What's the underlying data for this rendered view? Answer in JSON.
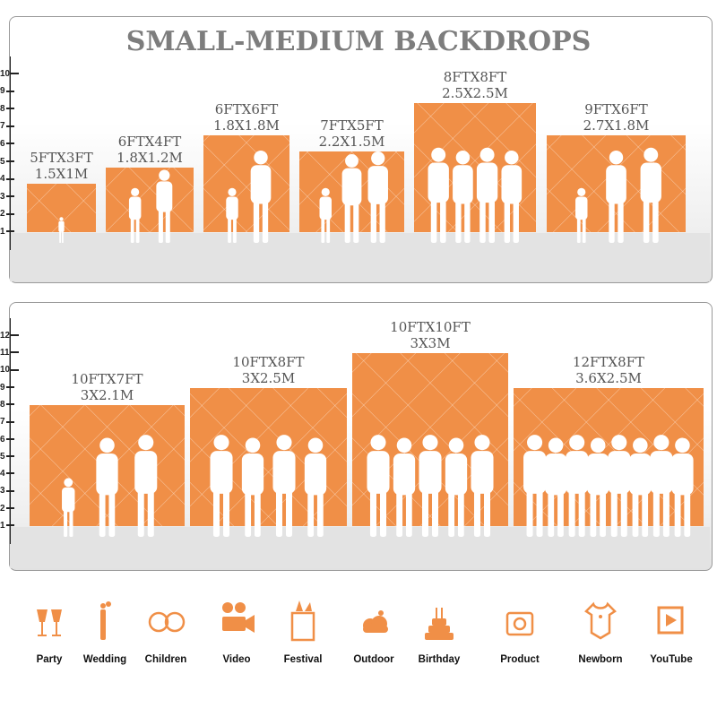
{
  "title": "SMALL-MEDIUM BACKDROPS",
  "top_ruler": [
    "10",
    "9",
    "8",
    "7",
    "6",
    "5",
    "4",
    "3",
    "2",
    "1"
  ],
  "bottom_ruler": [
    "12",
    "11",
    "10",
    "9",
    "8",
    "7",
    "6",
    "5",
    "4",
    "3",
    "2",
    "1"
  ],
  "top_sizes": [
    {
      "ft": "5FTX3FT",
      "m": "1.5X1M",
      "height_ft": 3,
      "people": 1
    },
    {
      "ft": "6FTX4FT",
      "m": "1.8X1.2M",
      "height_ft": 4,
      "people": 2
    },
    {
      "ft": "6FTX6FT",
      "m": "1.8X1.8M",
      "height_ft": 6,
      "people": 2
    },
    {
      "ft": "7FTX5FT",
      "m": "2.2X1.5M",
      "height_ft": 5,
      "people": 3
    },
    {
      "ft": "8FTX8FT",
      "m": "2.5X2.5M",
      "height_ft": 8,
      "people": 4
    },
    {
      "ft": "9FTX6FT",
      "m": "2.7X1.8M",
      "height_ft": 6,
      "people": 3
    }
  ],
  "bottom_sizes": [
    {
      "ft": "10FTX7FT",
      "m": "3X2.1M",
      "height_ft": 7,
      "people": 3
    },
    {
      "ft": "10FTX8FT",
      "m": "3X2.5M",
      "height_ft": 8,
      "people": 4
    },
    {
      "ft": "10FTX10FT",
      "m": "3X3M",
      "height_ft": 10,
      "people": 5
    },
    {
      "ft": "12FTX8FT",
      "m": "3.6X2.5M",
      "height_ft": 8,
      "people": 8
    }
  ],
  "accent_color": "#f08f47",
  "categories": [
    {
      "label": "Party",
      "icon": "champagne-glasses-icon"
    },
    {
      "label": "Wedding",
      "icon": "couple-icon"
    },
    {
      "label": "Children",
      "icon": "children-faces-icon"
    },
    {
      "label": "Video",
      "icon": "movie-camera-icon"
    },
    {
      "label": "Festival",
      "icon": "gift-box-icon"
    },
    {
      "label": "Outdoor",
      "icon": "cloud-icon"
    },
    {
      "label": "Birthday",
      "icon": "birthday-cake-icon"
    },
    {
      "label": "Product",
      "icon": "camera-icon"
    },
    {
      "label": "Newborn",
      "icon": "baby-onesie-icon"
    },
    {
      "label": "YouTube",
      "icon": "play-button-icon"
    }
  ]
}
